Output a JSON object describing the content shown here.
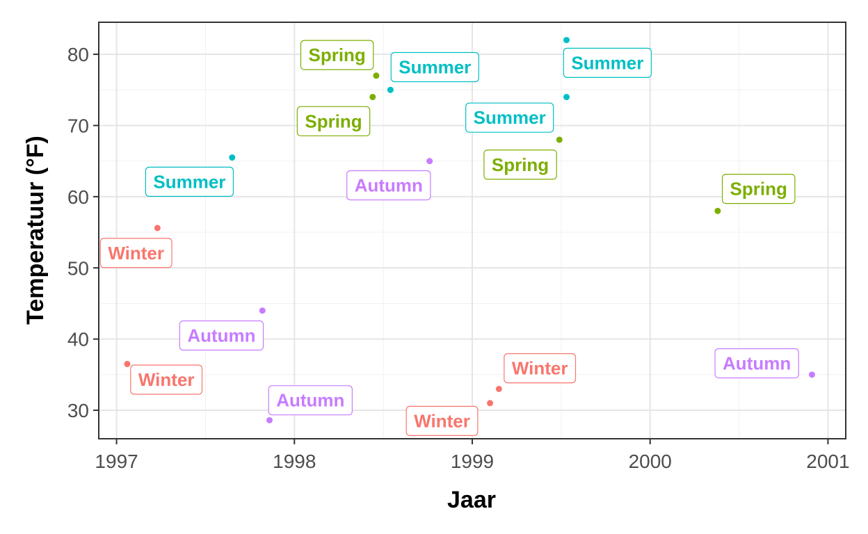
{
  "chart_data": {
    "type": "scatter",
    "title": "",
    "xlabel": "Jaar",
    "ylabel": "Temperatuur (°F)",
    "xlim": [
      1996.9,
      2001.1
    ],
    "ylim": [
      26,
      84.5
    ],
    "x_ticks": [
      1997,
      1998,
      1999,
      2000,
      2001
    ],
    "y_ticks": [
      30,
      40,
      50,
      60,
      70,
      80
    ],
    "grid": true,
    "legend": "none",
    "colors": {
      "Winter": "#F8766D",
      "Spring": "#7CAE00",
      "Summer": "#00BFC4",
      "Autumn": "#C77CFF"
    },
    "points": [
      {
        "x": 1997.06,
        "y": 36.5,
        "season": "Winter"
      },
      {
        "x": 1997.23,
        "y": 55.6,
        "season": "Winter"
      },
      {
        "x": 1997.65,
        "y": 65.5,
        "season": "Summer"
      },
      {
        "x": 1997.82,
        "y": 44.0,
        "season": "Autumn"
      },
      {
        "x": 1997.86,
        "y": 28.6,
        "season": "Autumn"
      },
      {
        "x": 1998.44,
        "y": 74.0,
        "season": "Spring"
      },
      {
        "x": 1998.46,
        "y": 77.0,
        "season": "Spring"
      },
      {
        "x": 1998.54,
        "y": 75.0,
        "season": "Summer"
      },
      {
        "x": 1998.76,
        "y": 65.0,
        "season": "Autumn"
      },
      {
        "x": 1999.1,
        "y": 31.0,
        "season": "Winter"
      },
      {
        "x": 1999.15,
        "y": 33.0,
        "season": "Winter"
      },
      {
        "x": 1999.49,
        "y": 68.0,
        "season": "Spring"
      },
      {
        "x": 1999.53,
        "y": 82.0,
        "season": "Summer"
      },
      {
        "x": 1999.53,
        "y": 74.0,
        "season": "Summer"
      },
      {
        "x": 2000.38,
        "y": 58.0,
        "season": "Spring"
      },
      {
        "x": 2000.91,
        "y": 35.0,
        "season": "Autumn"
      }
    ],
    "labels": [
      {
        "text": "Winter",
        "season": "Winter",
        "x": 1997.28,
        "y": 34.3
      },
      {
        "text": "Winter",
        "season": "Winter",
        "x": 1997.11,
        "y": 52.1
      },
      {
        "text": "Summer",
        "season": "Summer",
        "x": 1997.41,
        "y": 62.1
      },
      {
        "text": "Autumn",
        "season": "Autumn",
        "x": 1997.59,
        "y": 40.5
      },
      {
        "text": "Autumn",
        "season": "Autumn",
        "x": 1998.09,
        "y": 31.4
      },
      {
        "text": "Spring",
        "season": "Spring",
        "x": 1998.22,
        "y": 70.6
      },
      {
        "text": "Spring",
        "season": "Spring",
        "x": 1998.24,
        "y": 79.9
      },
      {
        "text": "Summer",
        "season": "Summer",
        "x": 1998.79,
        "y": 78.2
      },
      {
        "text": "Autumn",
        "season": "Autumn",
        "x": 1998.53,
        "y": 61.6
      },
      {
        "text": "Winter",
        "season": "Winter",
        "x": 1998.83,
        "y": 28.5
      },
      {
        "text": "Winter",
        "season": "Winter",
        "x": 1999.38,
        "y": 35.9
      },
      {
        "text": "Spring",
        "season": "Spring",
        "x": 1999.27,
        "y": 64.5
      },
      {
        "text": "Summer",
        "season": "Summer",
        "x": 1999.76,
        "y": 78.8
      },
      {
        "text": "Summer",
        "season": "Summer",
        "x": 1999.21,
        "y": 71.1
      },
      {
        "text": "Spring",
        "season": "Spring",
        "x": 2000.61,
        "y": 61.1
      },
      {
        "text": "Autumn",
        "season": "Autumn",
        "x": 2000.6,
        "y": 36.6
      }
    ]
  }
}
